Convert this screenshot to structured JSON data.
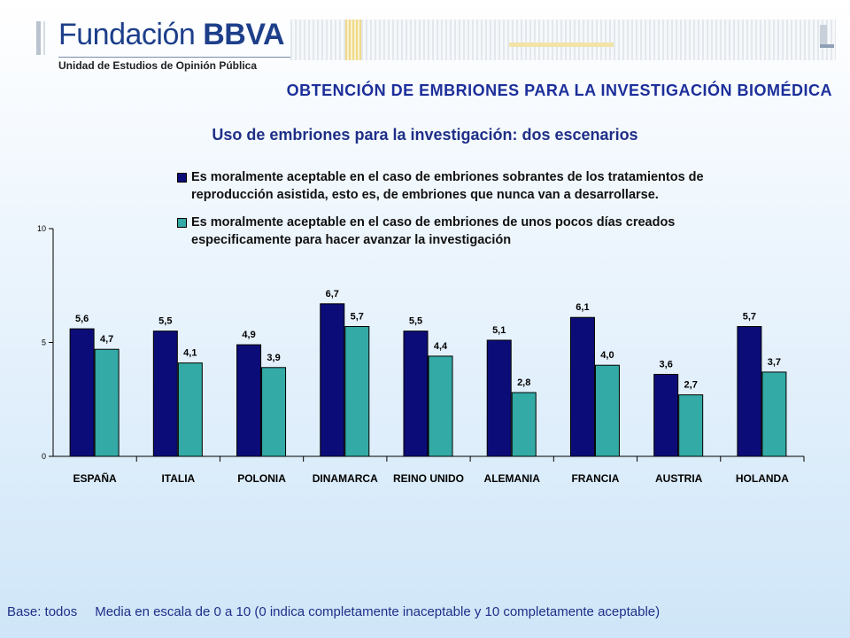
{
  "header": {
    "logo_text_light": "Fundación",
    "logo_text_bold": "BBVA",
    "unit": "Unidad de Estudios de Opinión Pública"
  },
  "title": "OBTENCIÓN DE EMBRIONES PARA LA INVESTIGACIÓN BIOMÉDICA",
  "footer": {
    "base": "Base: todos",
    "note": "Media en escala de 0 a 10 (0 indica completamente inaceptable y 10 completamente aceptable)"
  },
  "colors": {
    "series1": "#0c0c78",
    "series2": "#33aaa5",
    "title": "#1c2f9a"
  },
  "chart_data": {
    "type": "bar",
    "title": "Uso de embriones para la investigación: dos escenarios",
    "categories": [
      "ESPAÑA",
      "ITALIA",
      "POLONIA",
      "DINAMARCA",
      "REINO UNIDO",
      "ALEMANIA",
      "FRANCIA",
      "AUSTRIA",
      "HOLANDA"
    ],
    "series": [
      {
        "name": "Es moralmente aceptable en el caso de embriones sobrantes de los tratamientos de reproducción asistida, esto es, de embriones que nunca van a desarrollarse.",
        "values": [
          5.6,
          5.5,
          4.9,
          6.7,
          5.5,
          5.1,
          6.1,
          3.6,
          5.7
        ],
        "labels": [
          "5,6",
          "5,5",
          "4,9",
          "6,7",
          "5,5",
          "5,1",
          "6,1",
          "3,6",
          "5,7"
        ]
      },
      {
        "name": "Es moralmente aceptable en el caso de embriones de unos pocos días creados especificamente para hacer avanzar la investigación",
        "values": [
          4.7,
          4.1,
          3.9,
          5.7,
          4.4,
          2.8,
          4.0,
          2.7,
          3.7
        ],
        "labels": [
          "4,7",
          "4,1",
          "3,9",
          "5,7",
          "4,4",
          "2,8",
          "4,0",
          "2,7",
          "3,7"
        ]
      }
    ],
    "ylim": [
      0,
      10
    ],
    "yticks": [
      "0",
      "5",
      "10"
    ],
    "grid": false,
    "legend": "top"
  }
}
